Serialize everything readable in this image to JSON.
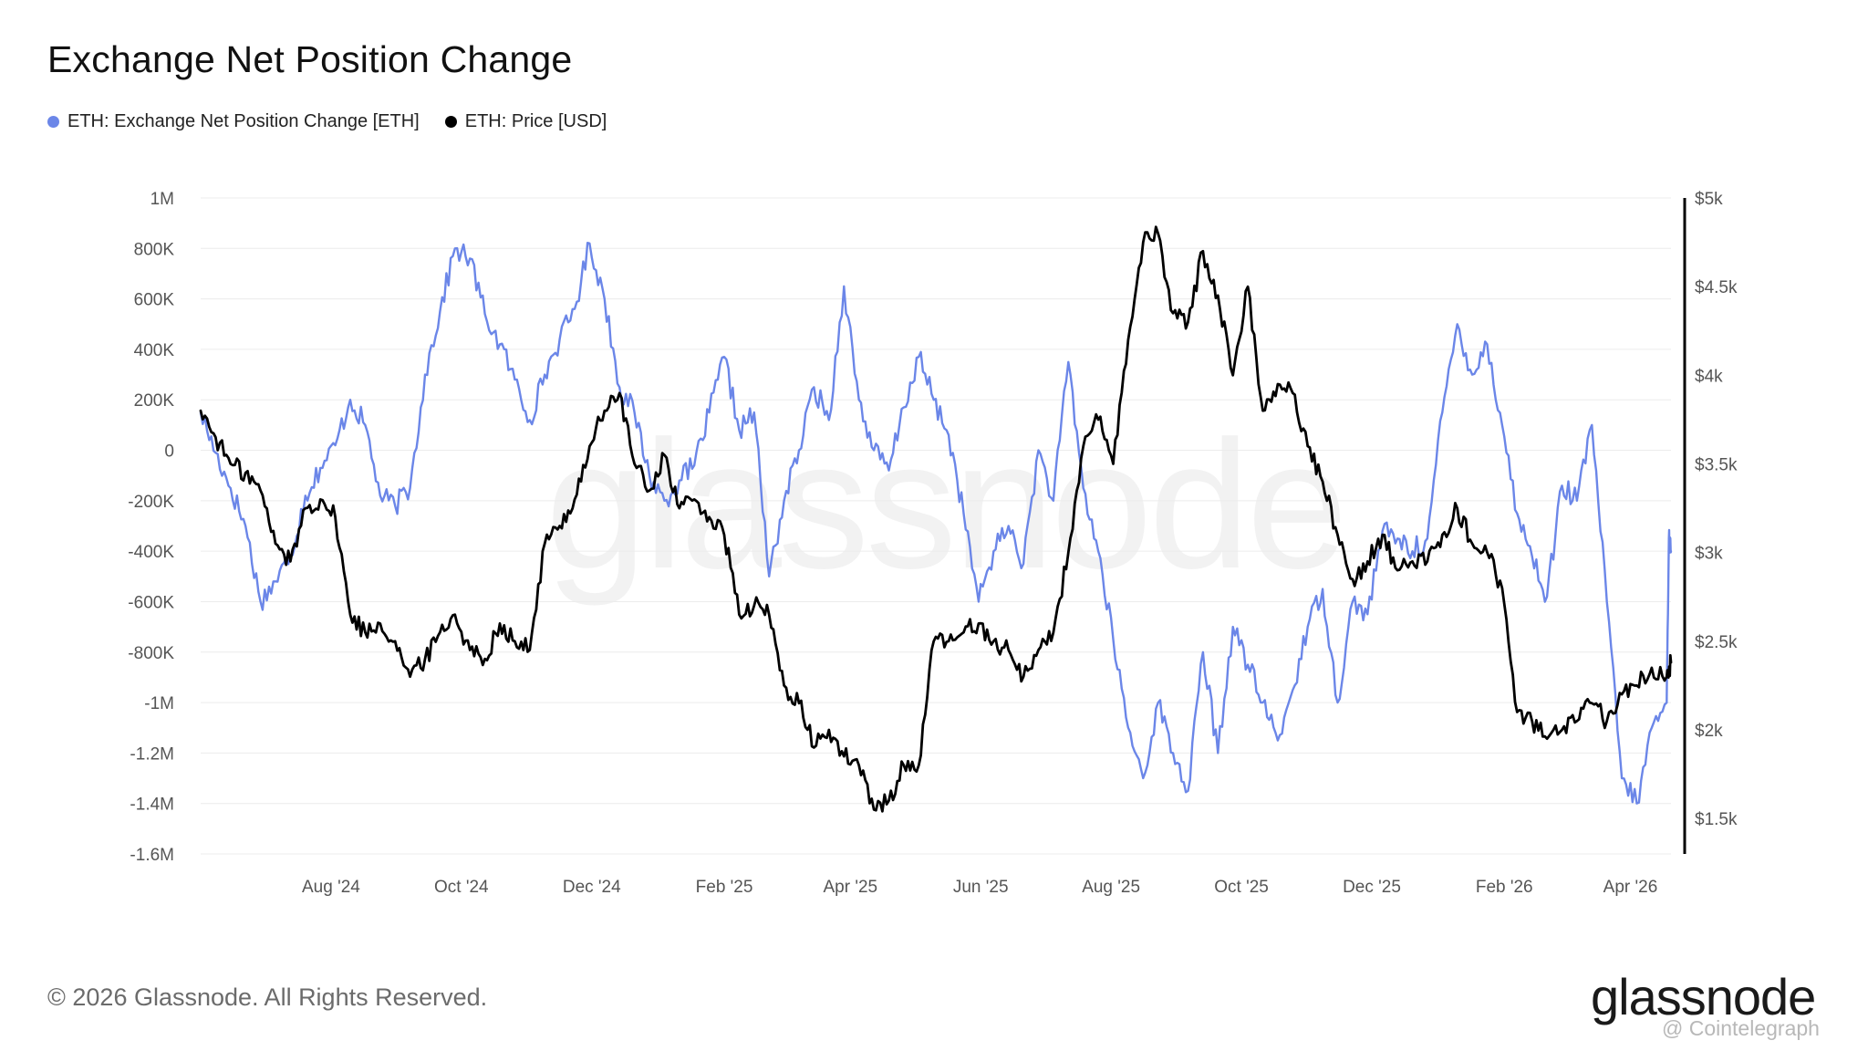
{
  "title": "Exchange Net Position Change",
  "legend": [
    {
      "label": "ETH: Exchange Net Position Change [ETH]",
      "color": "#6b86e8"
    },
    {
      "label": "ETH: Price [USD]",
      "color": "#000000"
    }
  ],
  "footer": {
    "copyright": "© 2026 Glassnode. All Rights Reserved.",
    "brand": "glassnode",
    "watermark": "glassnode",
    "credit": "@ Cointelegraph"
  },
  "chart_data": {
    "type": "line",
    "title": "Exchange Net Position Change",
    "x_start": "2024-06-01",
    "x_end": "2026-04-20",
    "x_ticks": [
      {
        "label": "Aug '24",
        "date": "2024-08-01"
      },
      {
        "label": "Oct '24",
        "date": "2024-10-01"
      },
      {
        "label": "Dec '24",
        "date": "2024-12-01"
      },
      {
        "label": "Feb '25",
        "date": "2025-02-01"
      },
      {
        "label": "Apr '25",
        "date": "2025-04-01"
      },
      {
        "label": "Jun '25",
        "date": "2025-06-01"
      },
      {
        "label": "Aug '25",
        "date": "2025-08-01"
      },
      {
        "label": "Oct '25",
        "date": "2025-10-01"
      },
      {
        "label": "Dec '25",
        "date": "2025-12-01"
      },
      {
        "label": "Feb '26",
        "date": "2026-02-01"
      },
      {
        "label": "Apr '26",
        "date": "2026-04-01"
      }
    ],
    "y_left": {
      "label": "ETH: Exchange Net Position Change [ETH]",
      "range": [
        -1600000,
        1000000
      ],
      "ticks": [
        {
          "value": 1000000,
          "label": "1M"
        },
        {
          "value": 800000,
          "label": "800K"
        },
        {
          "value": 600000,
          "label": "600K"
        },
        {
          "value": 400000,
          "label": "400K"
        },
        {
          "value": 200000,
          "label": "200K"
        },
        {
          "value": 0,
          "label": "0"
        },
        {
          "value": -200000,
          "label": "-200K"
        },
        {
          "value": -400000,
          "label": "-400K"
        },
        {
          "value": -600000,
          "label": "-600K"
        },
        {
          "value": -800000,
          "label": "-800K"
        },
        {
          "value": -1000000,
          "label": "-1M"
        },
        {
          "value": -1200000,
          "label": "-1.2M"
        },
        {
          "value": -1400000,
          "label": "-1.4M"
        },
        {
          "value": -1600000,
          "label": "-1.6M"
        }
      ]
    },
    "y_right": {
      "label": "ETH: Price [USD]",
      "range": [
        1300,
        5000
      ],
      "ticks": [
        {
          "value": 5000,
          "label": "$5k"
        },
        {
          "value": 4500,
          "label": "$4.5k"
        },
        {
          "value": 4000,
          "label": "$4k"
        },
        {
          "value": 3500,
          "label": "$3.5k"
        },
        {
          "value": 3000,
          "label": "$3k"
        },
        {
          "value": 2500,
          "label": "$2.5k"
        },
        {
          "value": 2000,
          "label": "$2k"
        },
        {
          "value": 1500,
          "label": "$1.5k"
        }
      ]
    },
    "grid": true,
    "legend_position": "top-left",
    "series": [
      {
        "name": "ETH: Exchange Net Position Change [ETH]",
        "axis": "left",
        "color": "#6b86e8",
        "points": [
          [
            "2024-06-01",
            150000
          ],
          [
            "2024-06-08",
            -10000
          ],
          [
            "2024-06-15",
            -150000
          ],
          [
            "2024-06-22",
            -300000
          ],
          [
            "2024-06-29",
            -600000
          ],
          [
            "2024-07-06",
            -520000
          ],
          [
            "2024-07-13",
            -420000
          ],
          [
            "2024-07-20",
            -180000
          ],
          [
            "2024-07-27",
            -70000
          ],
          [
            "2024-08-03",
            20000
          ],
          [
            "2024-08-10",
            200000
          ],
          [
            "2024-08-17",
            100000
          ],
          [
            "2024-08-24",
            -180000
          ],
          [
            "2024-08-31",
            -220000
          ],
          [
            "2024-09-07",
            -150000
          ],
          [
            "2024-09-14",
            300000
          ],
          [
            "2024-09-21",
            550000
          ],
          [
            "2024-09-28",
            800000
          ],
          [
            "2024-10-05",
            760000
          ],
          [
            "2024-10-12",
            540000
          ],
          [
            "2024-10-19",
            420000
          ],
          [
            "2024-10-26",
            280000
          ],
          [
            "2024-11-02",
            120000
          ],
          [
            "2024-11-09",
            300000
          ],
          [
            "2024-11-16",
            440000
          ],
          [
            "2024-11-23",
            560000
          ],
          [
            "2024-11-30",
            820000
          ],
          [
            "2024-12-07",
            600000
          ],
          [
            "2024-12-14",
            250000
          ],
          [
            "2024-12-21",
            150000
          ],
          [
            "2024-12-28",
            -100000
          ],
          [
            "2025-01-04",
            -200000
          ],
          [
            "2025-01-11",
            -120000
          ],
          [
            "2025-01-18",
            -60000
          ],
          [
            "2025-01-25",
            150000
          ],
          [
            "2025-02-01",
            370000
          ],
          [
            "2025-02-08",
            80000
          ],
          [
            "2025-02-15",
            150000
          ],
          [
            "2025-02-22",
            -500000
          ],
          [
            "2025-03-01",
            -200000
          ],
          [
            "2025-03-08",
            0
          ],
          [
            "2025-03-15",
            250000
          ],
          [
            "2025-03-22",
            120000
          ],
          [
            "2025-03-29",
            650000
          ],
          [
            "2025-04-05",
            200000
          ],
          [
            "2025-04-12",
            0
          ],
          [
            "2025-04-19",
            -80000
          ],
          [
            "2025-04-26",
            170000
          ],
          [
            "2025-05-03",
            370000
          ],
          [
            "2025-05-10",
            200000
          ],
          [
            "2025-05-17",
            60000
          ],
          [
            "2025-05-24",
            -250000
          ],
          [
            "2025-05-31",
            -600000
          ],
          [
            "2025-06-07",
            -400000
          ],
          [
            "2025-06-14",
            -300000
          ],
          [
            "2025-06-21",
            -450000
          ],
          [
            "2025-06-28",
            0
          ],
          [
            "2025-07-05",
            -200000
          ],
          [
            "2025-07-12",
            350000
          ],
          [
            "2025-07-19",
            -150000
          ],
          [
            "2025-07-26",
            -400000
          ],
          [
            "2025-08-02",
            -750000
          ],
          [
            "2025-08-09",
            -1100000
          ],
          [
            "2025-08-16",
            -1300000
          ],
          [
            "2025-08-23",
            -1000000
          ],
          [
            "2025-08-30",
            -1200000
          ],
          [
            "2025-09-06",
            -1350000
          ],
          [
            "2025-09-13",
            -800000
          ],
          [
            "2025-09-20",
            -1200000
          ],
          [
            "2025-09-27",
            -700000
          ],
          [
            "2025-10-04",
            -850000
          ],
          [
            "2025-10-11",
            -1000000
          ],
          [
            "2025-10-18",
            -1150000
          ],
          [
            "2025-10-25",
            -950000
          ],
          [
            "2025-11-01",
            -700000
          ],
          [
            "2025-11-08",
            -550000
          ],
          [
            "2025-11-15",
            -1000000
          ],
          [
            "2025-11-22",
            -600000
          ],
          [
            "2025-11-29",
            -650000
          ],
          [
            "2025-12-06",
            -320000
          ],
          [
            "2025-12-13",
            -350000
          ],
          [
            "2025-12-20",
            -400000
          ],
          [
            "2025-12-27",
            -350000
          ],
          [
            "2026-01-03",
            150000
          ],
          [
            "2026-01-10",
            500000
          ],
          [
            "2026-01-17",
            300000
          ],
          [
            "2026-01-24",
            420000
          ],
          [
            "2026-01-31",
            100000
          ],
          [
            "2026-02-07",
            -250000
          ],
          [
            "2026-02-14",
            -420000
          ],
          [
            "2026-02-21",
            -580000
          ],
          [
            "2026-02-28",
            -140000
          ],
          [
            "2026-03-07",
            -200000
          ],
          [
            "2026-03-14",
            100000
          ],
          [
            "2026-03-21",
            -600000
          ],
          [
            "2026-03-28",
            -1300000
          ],
          [
            "2026-04-04",
            -1400000
          ],
          [
            "2026-04-11",
            -1100000
          ],
          [
            "2026-04-18",
            -1000000
          ],
          [
            "2026-04-19",
            -350000
          ],
          [
            "2026-04-20",
            -400000
          ]
        ]
      },
      {
        "name": "ETH: Price [USD]",
        "axis": "right",
        "color": "#000000",
        "points": [
          [
            "2024-06-01",
            3800
          ],
          [
            "2024-06-08",
            3650
          ],
          [
            "2024-06-15",
            3500
          ],
          [
            "2024-06-22",
            3450
          ],
          [
            "2024-06-29",
            3350
          ],
          [
            "2024-07-06",
            3050
          ],
          [
            "2024-07-13",
            2950
          ],
          [
            "2024-07-20",
            3250
          ],
          [
            "2024-07-27",
            3300
          ],
          [
            "2024-08-03",
            3200
          ],
          [
            "2024-08-10",
            2650
          ],
          [
            "2024-08-17",
            2550
          ],
          [
            "2024-08-24",
            2600
          ],
          [
            "2024-08-31",
            2500
          ],
          [
            "2024-09-07",
            2300
          ],
          [
            "2024-09-14",
            2400
          ],
          [
            "2024-09-21",
            2550
          ],
          [
            "2024-09-28",
            2650
          ],
          [
            "2024-10-05",
            2450
          ],
          [
            "2024-10-12",
            2400
          ],
          [
            "2024-10-19",
            2600
          ],
          [
            "2024-10-26",
            2500
          ],
          [
            "2024-11-02",
            2450
          ],
          [
            "2024-11-09",
            3050
          ],
          [
            "2024-11-16",
            3150
          ],
          [
            "2024-11-23",
            3300
          ],
          [
            "2024-11-30",
            3600
          ],
          [
            "2024-12-07",
            3800
          ],
          [
            "2024-12-14",
            3900
          ],
          [
            "2024-12-21",
            3500
          ],
          [
            "2024-12-28",
            3350
          ],
          [
            "2025-01-04",
            3550
          ],
          [
            "2025-01-11",
            3250
          ],
          [
            "2025-01-18",
            3300
          ],
          [
            "2025-01-25",
            3200
          ],
          [
            "2025-02-01",
            3100
          ],
          [
            "2025-02-08",
            2650
          ],
          [
            "2025-02-15",
            2700
          ],
          [
            "2025-02-22",
            2650
          ],
          [
            "2025-03-01",
            2250
          ],
          [
            "2025-03-08",
            2150
          ],
          [
            "2025-03-15",
            1900
          ],
          [
            "2025-03-22",
            2000
          ],
          [
            "2025-03-29",
            1850
          ],
          [
            "2025-04-05",
            1800
          ],
          [
            "2025-04-12",
            1550
          ],
          [
            "2025-04-19",
            1600
          ],
          [
            "2025-04-26",
            1800
          ],
          [
            "2025-05-03",
            1800
          ],
          [
            "2025-05-10",
            2500
          ],
          [
            "2025-05-17",
            2500
          ],
          [
            "2025-05-24",
            2550
          ],
          [
            "2025-05-31",
            2600
          ],
          [
            "2025-06-07",
            2500
          ],
          [
            "2025-06-14",
            2450
          ],
          [
            "2025-06-21",
            2300
          ],
          [
            "2025-06-28",
            2450
          ],
          [
            "2025-07-05",
            2550
          ],
          [
            "2025-07-12",
            3000
          ],
          [
            "2025-07-19",
            3600
          ],
          [
            "2025-07-26",
            3750
          ],
          [
            "2025-08-02",
            3500
          ],
          [
            "2025-08-09",
            4200
          ],
          [
            "2025-08-16",
            4750
          ],
          [
            "2025-08-23",
            4800
          ],
          [
            "2025-08-30",
            4350
          ],
          [
            "2025-09-06",
            4300
          ],
          [
            "2025-09-13",
            4700
          ],
          [
            "2025-09-20",
            4450
          ],
          [
            "2025-09-27",
            4000
          ],
          [
            "2025-10-04",
            4500
          ],
          [
            "2025-10-11",
            3800
          ],
          [
            "2025-10-18",
            3950
          ],
          [
            "2025-10-25",
            3900
          ],
          [
            "2025-11-01",
            3600
          ],
          [
            "2025-11-08",
            3400
          ],
          [
            "2025-11-15",
            3100
          ],
          [
            "2025-11-22",
            2850
          ],
          [
            "2025-11-29",
            2950
          ],
          [
            "2025-12-06",
            3100
          ],
          [
            "2025-12-13",
            2900
          ],
          [
            "2025-12-20",
            2950
          ],
          [
            "2025-12-27",
            2950
          ],
          [
            "2026-01-03",
            3100
          ],
          [
            "2026-01-10",
            3250
          ],
          [
            "2026-01-17",
            3050
          ],
          [
            "2026-01-24",
            3000
          ],
          [
            "2026-01-31",
            2800
          ],
          [
            "2026-02-07",
            2100
          ],
          [
            "2026-02-14",
            2050
          ],
          [
            "2026-02-21",
            1950
          ],
          [
            "2026-02-28",
            2000
          ],
          [
            "2026-03-07",
            2050
          ],
          [
            "2026-03-14",
            2150
          ],
          [
            "2026-03-21",
            2050
          ],
          [
            "2026-03-28",
            2200
          ],
          [
            "2026-04-04",
            2250
          ],
          [
            "2026-04-11",
            2350
          ],
          [
            "2026-04-18",
            2300
          ],
          [
            "2026-04-20",
            2380
          ]
        ]
      }
    ]
  }
}
